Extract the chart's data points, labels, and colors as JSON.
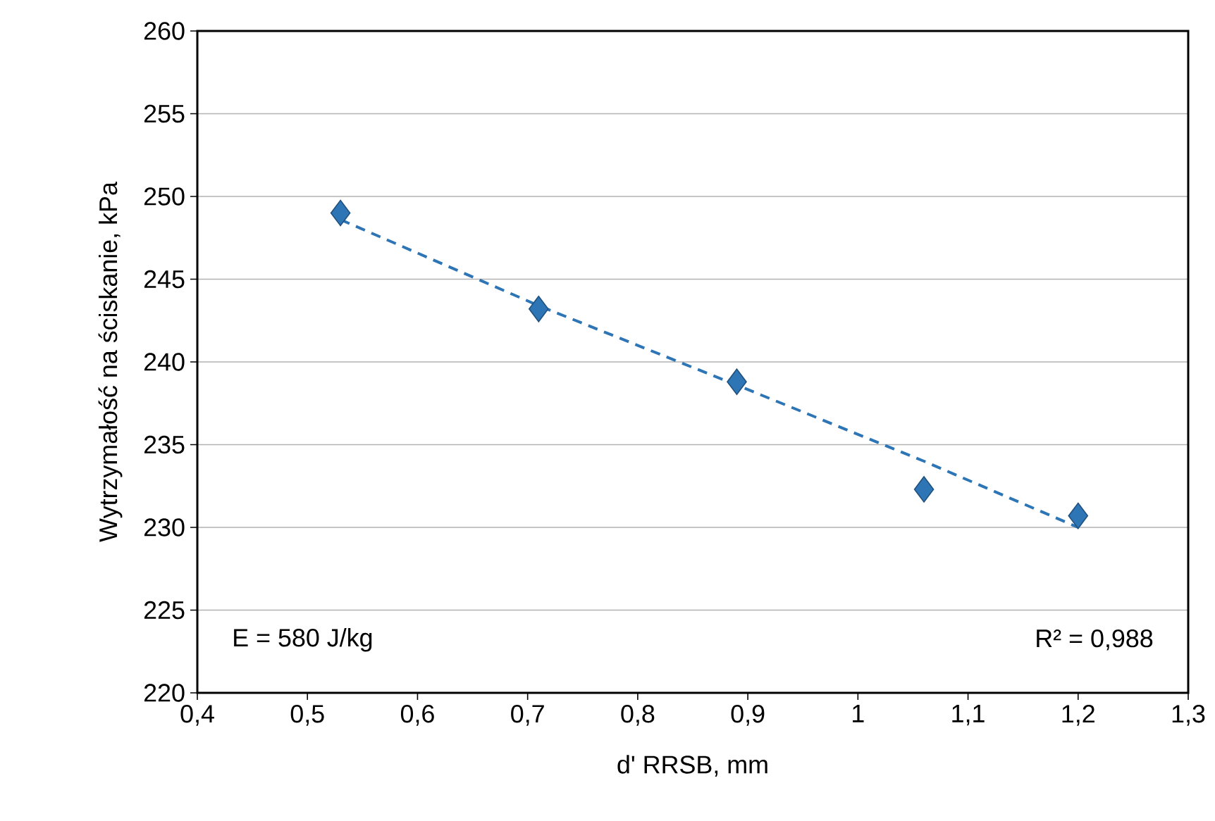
{
  "chart_data": {
    "type": "scatter",
    "xlabel": "d' RRSB, mm",
    "ylabel": "Wytrzymałość na ściskanie, kPa",
    "xlim": [
      0.4,
      1.3
    ],
    "ylim": [
      220,
      260
    ],
    "xticks": [
      {
        "value": 0.4,
        "label": "0,4"
      },
      {
        "value": 0.5,
        "label": "0,5"
      },
      {
        "value": 0.6,
        "label": "0,6"
      },
      {
        "value": 0.7,
        "label": "0,7"
      },
      {
        "value": 0.8,
        "label": "0,8"
      },
      {
        "value": 0.9,
        "label": "0,9"
      },
      1,
      {
        "value": 1.1,
        "label": "1,1"
      },
      {
        "value": 1.2,
        "label": "1,2"
      },
      {
        "value": 1.3,
        "label": "1,3"
      }
    ],
    "yticks": [
      220,
      225,
      230,
      235,
      240,
      245,
      250,
      255,
      260
    ],
    "grid": "y",
    "series": [
      {
        "type": "line",
        "color": "#2e75b6",
        "line_style": "dashed",
        "marker": "none",
        "x": [
          0.53,
          0.71,
          0.89,
          1.06,
          1.2
        ],
        "values": [
          248.6,
          243.4,
          238.6,
          234.0,
          230.0
        ]
      },
      {
        "color": "#2e75b6",
        "marker": "diamond",
        "x": [
          0.53,
          0.71,
          0.89,
          1.06,
          1.2
        ],
        "values": [
          249.0,
          243.2,
          238.8,
          232.3,
          230.7
        ]
      }
    ],
    "annotations": [
      "E = 580 J/kg",
      "R² = 0,988"
    ]
  }
}
